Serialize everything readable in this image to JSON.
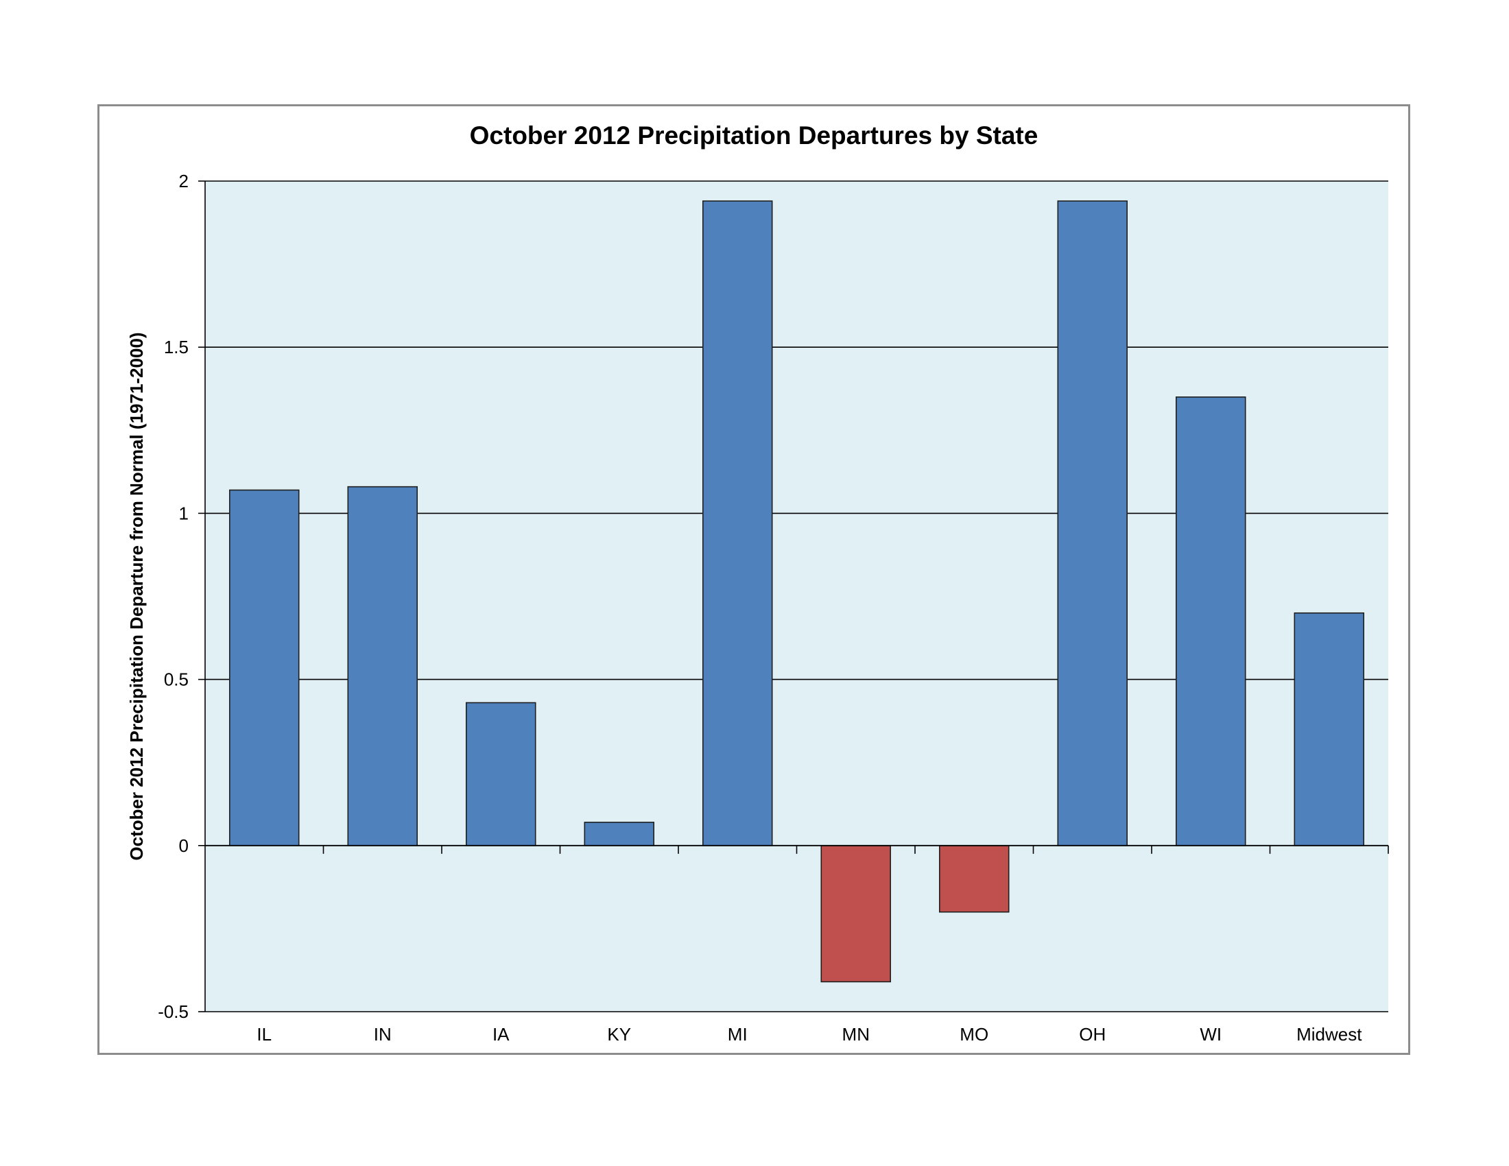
{
  "chart_data": {
    "type": "bar",
    "title": "October 2012 Precipitation Departures by State",
    "ylabel": "October 2012 Precipitation Departure from Normal (1971-2000)",
    "xlabel": "",
    "categories": [
      "IL",
      "IN",
      "IA",
      "KY",
      "MI",
      "MN",
      "MO",
      "OH",
      "WI",
      "Midwest"
    ],
    "values": [
      1.07,
      1.08,
      0.43,
      0.07,
      1.94,
      -0.41,
      -0.2,
      1.94,
      1.35,
      0.7
    ],
    "ylim": [
      -0.5,
      2
    ],
    "yticks": [
      2,
      1.5,
      1,
      0.5,
      0,
      -0.5
    ],
    "ytick_labels": [
      "2",
      "1.5",
      "1",
      "0.5",
      "0",
      "-0.5"
    ],
    "grid": true,
    "legend": "none",
    "colors": {
      "positive": "#4f81bd",
      "negative": "#c0504d",
      "plot_background": "#e1f0f5",
      "bar_outline": "#1f1f1f",
      "gridline": "#000000"
    }
  }
}
